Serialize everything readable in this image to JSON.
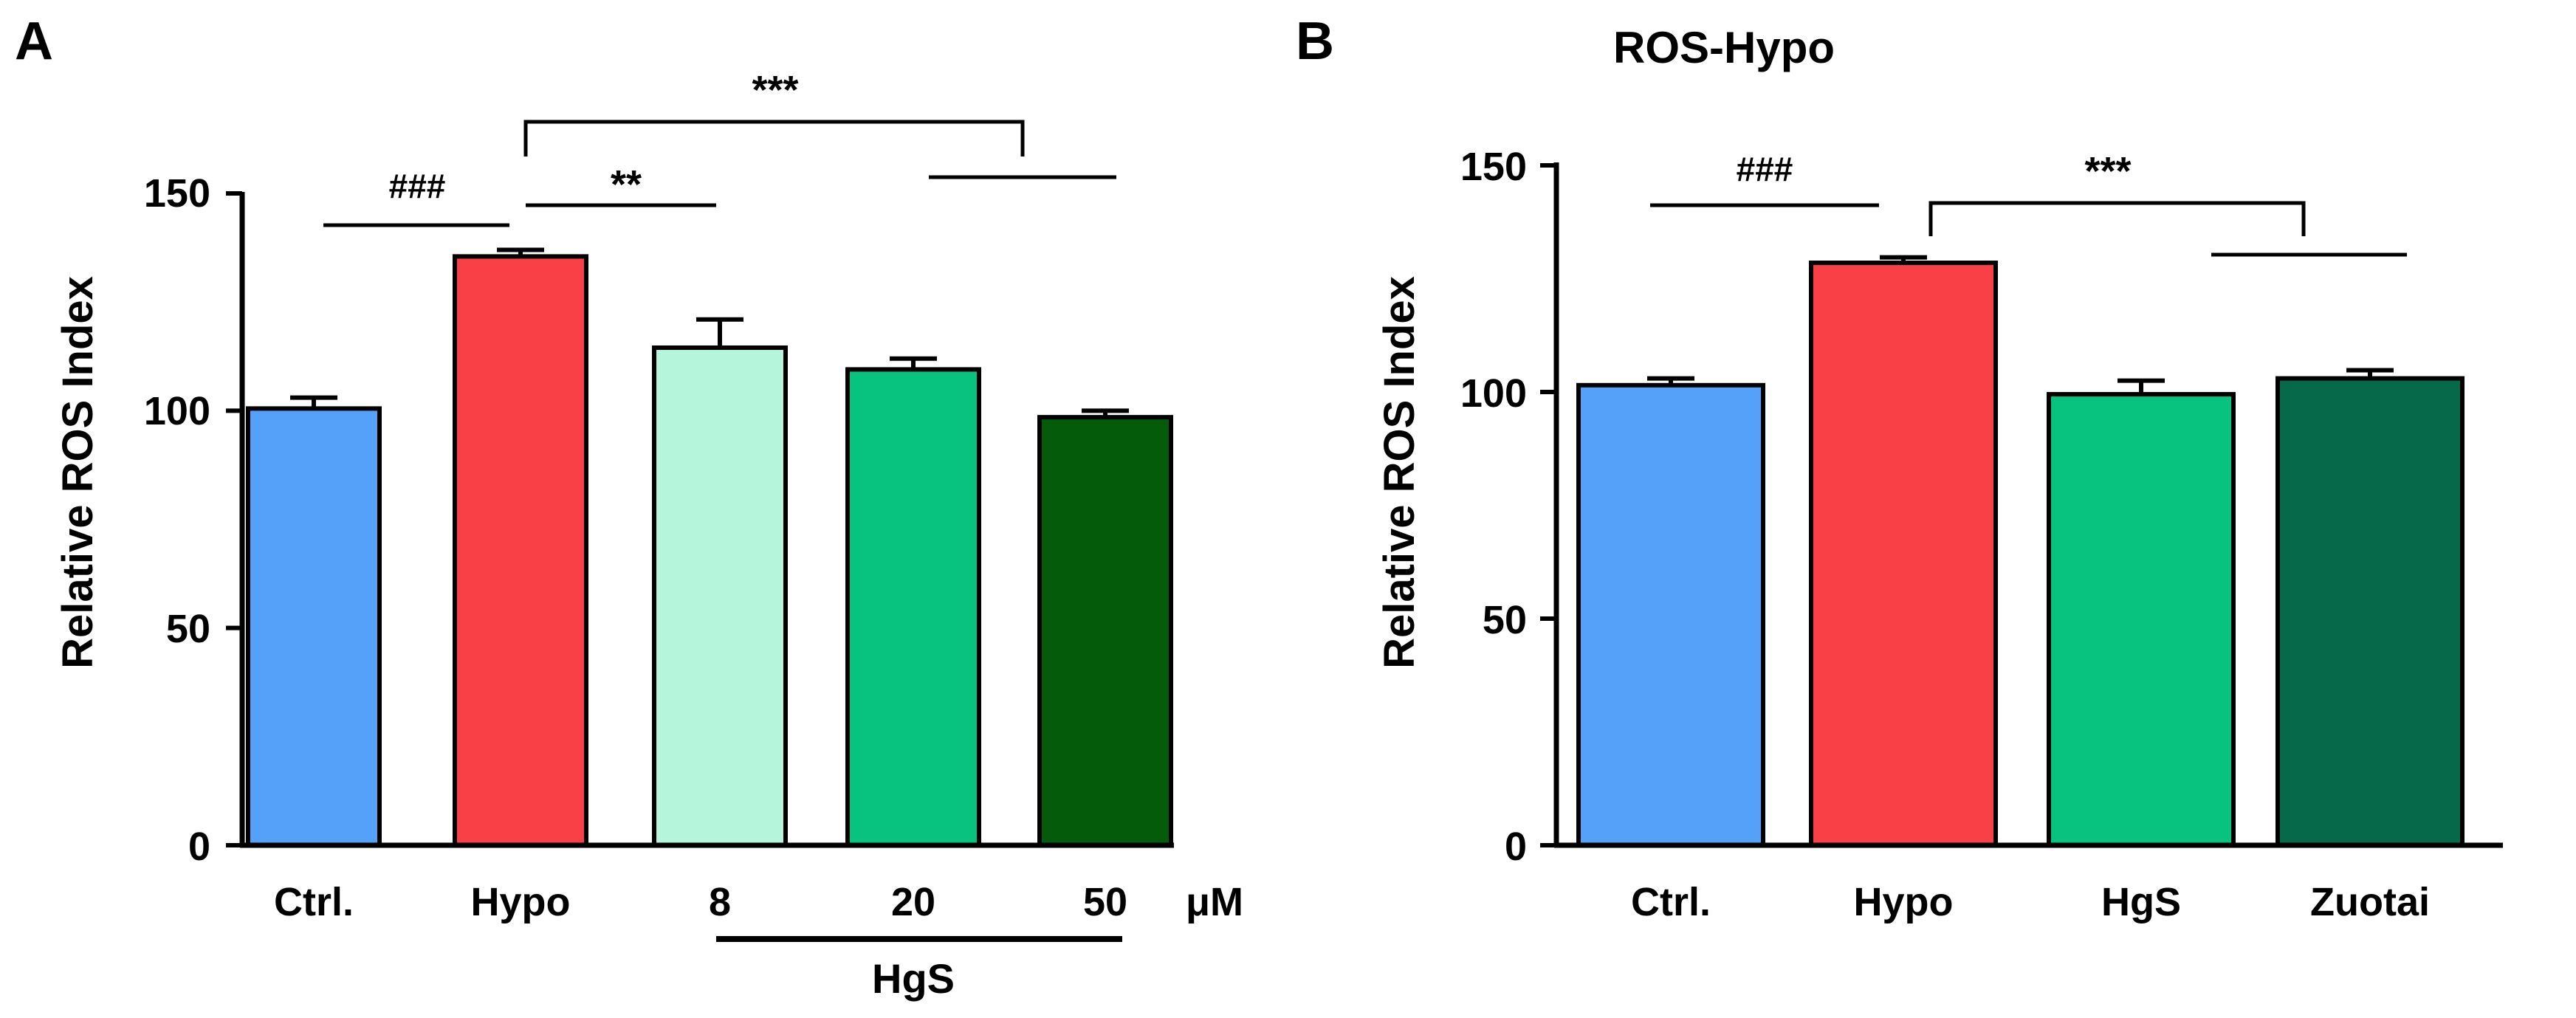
{
  "chart_data": [
    {
      "panel_label": "A",
      "type": "bar",
      "title": "",
      "ylabel": "Relative ROS Index",
      "xlabel": "",
      "ylim": [
        0,
        150
      ],
      "yticks": [
        0,
        50,
        100,
        150
      ],
      "categories": [
        "Ctrl.",
        "Hypo",
        "8",
        "20",
        "50"
      ],
      "values": [
        100.5,
        135.5,
        114.5,
        109.5,
        98.5
      ],
      "errors": [
        2.5,
        1.5,
        6.5,
        2.5,
        1.5
      ],
      "colors": [
        "#55a0f9",
        "#f94046",
        "#b4f5dc",
        "#08c27f",
        "#045b0a"
      ],
      "unit_label": "μM",
      "group_label": "HgS",
      "annotations": [
        {
          "text": "###",
          "between": [
            "Ctrl.",
            "Hypo"
          ]
        },
        {
          "text": "**",
          "between": [
            "Hypo",
            "8"
          ]
        },
        {
          "text": "***",
          "between": [
            "Hypo",
            "20-50"
          ]
        }
      ]
    },
    {
      "panel_label": "B",
      "type": "bar",
      "title": "ROS-Hypo",
      "ylabel": "Relative ROS Index",
      "xlabel": "",
      "ylim": [
        0,
        150
      ],
      "yticks": [
        0,
        50,
        100,
        150
      ],
      "categories": [
        "Ctrl.",
        "Hypo",
        "HgS",
        "Zuotai"
      ],
      "values": [
        101.5,
        128.5,
        99.5,
        103
      ],
      "errors": [
        1.5,
        1.2,
        3,
        1.8
      ],
      "colors": [
        "#55a0f9",
        "#f94046",
        "#08c27f",
        "#06694a"
      ],
      "annotations": [
        {
          "text": "###",
          "between": [
            "Ctrl.",
            "Hypo"
          ]
        },
        {
          "text": "***",
          "between": [
            "Hypo",
            "HgS-Zuotai"
          ]
        }
      ]
    }
  ]
}
